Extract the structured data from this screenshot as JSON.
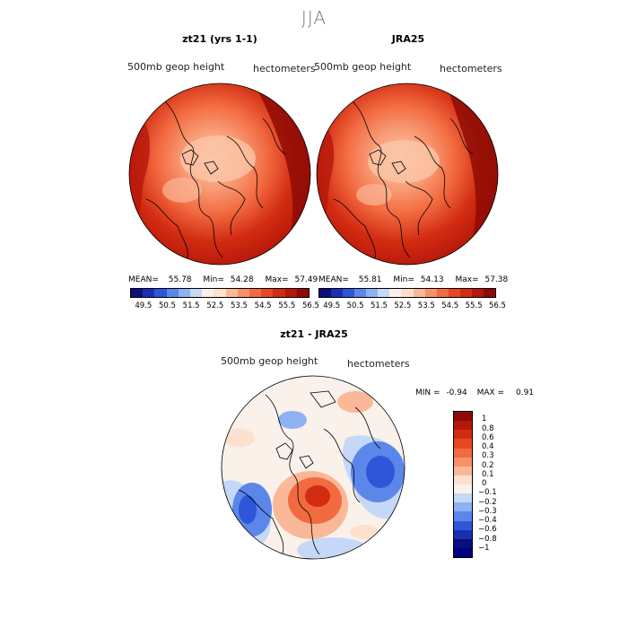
{
  "title": "JJA",
  "panels": [
    {
      "title": "zt21 (yrs 1-1)",
      "variable_label": "500mb geop height",
      "units_label": "hectometers",
      "stats": {
        "mean_label": "MEAN=",
        "mean": "55.78",
        "min_label": "Min=",
        "min": "54.28",
        "max_label": "Max=",
        "max": "57.49"
      }
    },
    {
      "title": "JRA25",
      "variable_label": "500mb geop height",
      "units_label": "hectometers",
      "stats": {
        "mean_label": "MEAN=",
        "mean": "55.81",
        "min_label": "Min=",
        "min": "54.13",
        "max_label": "Max=",
        "max": "57.38"
      }
    }
  ],
  "diff_panel": {
    "title": "zt21 - JRA25",
    "variable_label": "500mb geop height",
    "units_label": "hectometers",
    "stats": {
      "min_label": "MIN =",
      "min": "-0.94",
      "max_label": "MAX =",
      "max": "0.91"
    }
  },
  "abs_colorbar": {
    "ticks": [
      "49.5",
      "50.5",
      "51.5",
      "52.5",
      "53.5",
      "54.5",
      "55.5",
      "56.5"
    ],
    "colors": [
      "#0a0f7a",
      "#1a2fb0",
      "#2f56d8",
      "#5b86ea",
      "#8fb0f2",
      "#c6d8f8",
      "#f9f1ea",
      "#fde0cd",
      "#fbb898",
      "#f89068",
      "#f26a40",
      "#e64822",
      "#d22c12",
      "#b5170a",
      "#8e0a05"
    ]
  },
  "diff_colorbar": {
    "labels": [
      "1",
      "0.8",
      "0.6",
      "0.4",
      "0.3",
      "0.2",
      "0.1",
      "0",
      "−0.1",
      "−0.2",
      "−0.3",
      "−0.4",
      "−0.6",
      "−0.8",
      "−1"
    ],
    "colors": [
      "#8e0a05",
      "#b5170a",
      "#d22c12",
      "#e64822",
      "#f26a40",
      "#f89068",
      "#fbb898",
      "#fde0cd",
      "#f9f1ea",
      "#c6d8f8",
      "#8fb0f2",
      "#5b86ea",
      "#2f56d8",
      "#1a2fb0",
      "#0a0f7a",
      "#000080"
    ]
  },
  "colors": {
    "land_outline": "#000000",
    "background": "#ffffff"
  }
}
